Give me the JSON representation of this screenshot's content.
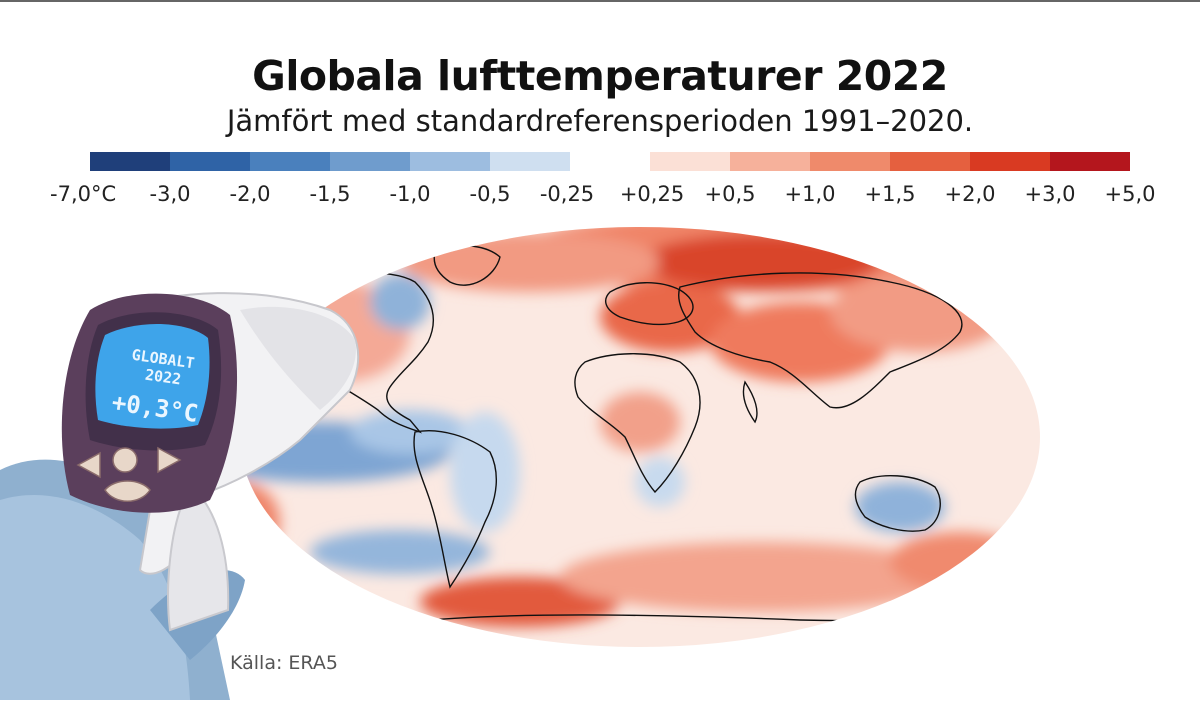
{
  "title": "Globala lufttemperaturer 2022",
  "subtitle": "Jämfört med standardreferensperioden 1991–2020.",
  "legend": {
    "ticks": [
      "-7,0°C",
      "-3,0",
      "-2,0",
      "-1,5",
      "-1,0",
      "-0,5",
      "-0,25",
      "+0,25",
      "+0,5",
      "+1,0",
      "+1,5",
      "+2,0",
      "+3,0",
      "+5,0"
    ],
    "colors_cool": [
      "#1f3f7a",
      "#2f63a6",
      "#4a80bd",
      "#6f9ccd",
      "#9dbde0",
      "#cfdff0"
    ],
    "colors_warm": [
      "#fbe0d6",
      "#f6b19b",
      "#ef8a6b",
      "#e5603f",
      "#d93a22",
      "#b4161d"
    ]
  },
  "thermometer": {
    "line1": "GLOBALT",
    "line2": "2022",
    "reading": "+0,3°C"
  },
  "source": "Källa: ERA5"
}
